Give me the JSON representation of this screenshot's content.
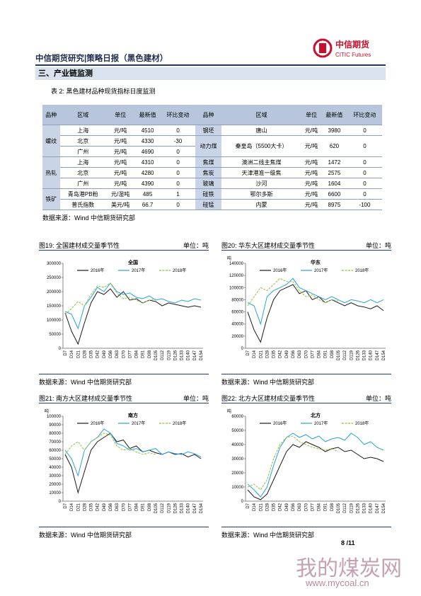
{
  "header": {
    "title": "中信期货研究|策略日报（黑色建材）",
    "logo_cn": "中信期货",
    "logo_en": "CITIC Futures"
  },
  "section": "三、产业链监测",
  "table": {
    "caption": "表 2: 黑色建材品种现货指标日度监测",
    "columns": [
      "品种",
      "区域",
      "单位",
      "最新值",
      "环比变动",
      "品种",
      "区域",
      "单位",
      "最新值",
      "环比变动"
    ],
    "left": [
      {
        "name": "螺纹",
        "rows": [
          [
            "上海",
            "元/吨",
            4510,
            0
          ],
          [
            "北京",
            "元/吨",
            4330,
            -30
          ],
          [
            "广州",
            "元/吨",
            4690,
            0
          ]
        ]
      },
      {
        "name": "热轧",
        "rows": [
          [
            "上海",
            "元/吨",
            4310,
            0
          ],
          [
            "北京",
            "元/吨",
            4280,
            0
          ],
          [
            "广州",
            "元/吨",
            4390,
            0
          ]
        ]
      },
      {
        "name": "铁矿",
        "rows": [
          [
            "青岛港PB粉",
            "元/湿吨",
            485,
            1
          ],
          [
            "普氏指数",
            "美元/吨",
            66.7,
            0
          ]
        ]
      }
    ],
    "right": [
      {
        "name": "钢坯",
        "rows": [
          [
            "唐山",
            "元/吨",
            3980,
            0
          ]
        ]
      },
      {
        "name": "动力煤",
        "rows": [
          [
            "秦皇岛（5500大卡）",
            "元/吨",
            620,
            0
          ]
        ]
      },
      {
        "name": "焦煤",
        "rows": [
          [
            "澳洲二线主焦煤",
            "元/吨",
            1472,
            0
          ]
        ]
      },
      {
        "name": "焦炭",
        "rows": [
          [
            "天津港准一级焦",
            "元/吨",
            2575,
            0
          ]
        ]
      },
      {
        "name": "玻璃",
        "rows": [
          [
            "沙河",
            "元/吨",
            1604,
            0
          ]
        ]
      },
      {
        "name": "硅铁",
        "rows": [
          [
            "鄂尔多斯",
            "元/吨",
            6600,
            0
          ]
        ]
      },
      {
        "name": "硅锰",
        "rows": [
          [
            "内蒙",
            "元/吨",
            8975,
            -100
          ]
        ]
      }
    ],
    "source": "数据来源：Wind 中信期货研究部"
  },
  "charts": [
    {
      "type": "line",
      "figure": "图19: 全国建材成交量季节性",
      "unit": "单位：吨",
      "title": "全国",
      "source": "数据来源：Wind 中信期货研究部",
      "categories": [
        "D7",
        "D14",
        "D21",
        "D28",
        "D35",
        "D42",
        "D49",
        "D56",
        "D63",
        "D70",
        "D77",
        "D84",
        "D91",
        "D98",
        "D105",
        "D112",
        "D119",
        "D126",
        "D133",
        "D140",
        "D147",
        "D154"
      ],
      "ylim": [
        0,
        300000
      ],
      "yticks": [
        0,
        50000,
        100000,
        150000,
        200000,
        250000,
        300000
      ],
      "series": [
        {
          "name": "2016年",
          "color": "#1a1a1a",
          "values": [
            125000,
            60000,
            15000,
            90000,
            160000,
            200000,
            190000,
            210000,
            180000,
            200000,
            170000,
            175000,
            160000,
            170000,
            165000,
            150000,
            160000,
            155000,
            150000,
            145000,
            150000,
            145000
          ]
        },
        {
          "name": "2017年",
          "color": "#29a3d9",
          "values": [
            130000,
            120000,
            70000,
            150000,
            180000,
            215000,
            200000,
            230000,
            200000,
            190000,
            195000,
            180000,
            175000,
            185000,
            170000,
            175000,
            165000,
            160000,
            170000,
            165000,
            175000,
            170000
          ]
        },
        {
          "name": "2018年",
          "color": "#8dc63f",
          "values": [
            120000,
            140000,
            165000,
            150000,
            190000,
            220000,
            215000,
            230000,
            195000,
            175000,
            180000,
            170000,
            160000,
            170000,
            175000,
            null,
            null,
            null,
            null,
            null,
            null,
            null
          ]
        }
      ]
    },
    {
      "type": "line",
      "figure": "图20: 华东大区建材成交量季节性",
      "unit": "单位：吨",
      "title": "华东",
      "ylabel": "吨",
      "source": "数据来源：Wind 中信期货研究部",
      "categories": [
        "D7",
        "D14",
        "D21",
        "D28",
        "D35",
        "D42",
        "D49",
        "D56",
        "D63",
        "D70",
        "D77",
        "D84",
        "D91",
        "D98",
        "D105",
        "D112",
        "D119",
        "D126",
        "D133",
        "D140",
        "D147",
        "D154"
      ],
      "ylim": [
        0,
        140000
      ],
      "yticks": [
        0,
        20000,
        40000,
        60000,
        80000,
        100000,
        120000,
        140000
      ],
      "series": [
        {
          "name": "2016年",
          "color": "#1a1a1a",
          "values": [
            60000,
            30000,
            10000,
            50000,
            80000,
            95000,
            100000,
            105000,
            90000,
            95000,
            80000,
            85000,
            75000,
            80000,
            75000,
            70000,
            75000,
            70000,
            68000,
            65000,
            70000,
            62000
          ]
        },
        {
          "name": "2017年",
          "color": "#29a3d9",
          "values": [
            75000,
            70000,
            40000,
            85000,
            95000,
            100000,
            105000,
            115000,
            100000,
            95000,
            90000,
            85000,
            80000,
            85000,
            80000,
            75000,
            80000,
            78000,
            75000,
            80000,
            75000,
            80000
          ]
        },
        {
          "name": "2018年",
          "color": "#8dc63f",
          "values": [
            70000,
            85000,
            100000,
            95000,
            105000,
            115000,
            110000,
            110000,
            95000,
            85000,
            88000,
            80000,
            75000,
            80000,
            78000,
            null,
            null,
            null,
            null,
            null,
            null,
            null
          ]
        }
      ]
    },
    {
      "type": "line",
      "figure": "图21: 南方大区建材成交量季节性",
      "unit": "单位：吨",
      "title": "南方",
      "ylabel": "吨",
      "source": "数据来源：Wind 中信期货研究部",
      "categories": [
        "D7",
        "D14",
        "D21",
        "D28",
        "D35",
        "D42",
        "D49",
        "D56",
        "D63",
        "D70",
        "D77",
        "D84",
        "D91",
        "D98",
        "D105",
        "D112",
        "D119",
        "D126",
        "D133",
        "D140",
        "D147",
        "D154"
      ],
      "ylim": [
        0,
        100000
      ],
      "yticks": [
        0,
        10000,
        20000,
        30000,
        40000,
        50000,
        60000,
        70000,
        80000,
        90000,
        100000
      ],
      "series": [
        {
          "name": "2016年",
          "color": "#1a1a1a",
          "values": [
            55000,
            40000,
            10000,
            35000,
            60000,
            70000,
            75000,
            80000,
            70000,
            72000,
            62000,
            65000,
            58000,
            60000,
            57000,
            55000,
            58000,
            55000,
            56000,
            52000,
            55000,
            50000
          ]
        },
        {
          "name": "2017年",
          "color": "#29a3d9",
          "values": [
            60000,
            50000,
            30000,
            60000,
            70000,
            75000,
            85000,
            80000,
            68000,
            65000,
            60000,
            62000,
            58000,
            60000,
            62000,
            55000,
            58000,
            56000,
            55000,
            58000,
            56000,
            52000
          ]
        },
        {
          "name": "2018年",
          "color": "#8dc63f",
          "values": [
            55000,
            65000,
            70000,
            60000,
            70000,
            75000,
            80000,
            78000,
            65000,
            60000,
            62000,
            58000,
            55000,
            57000,
            55000,
            null,
            null,
            null,
            null,
            null,
            null,
            null
          ]
        }
      ]
    },
    {
      "type": "line",
      "figure": "图22: 北方大区建材成交量季节性",
      "unit": "单位：吨",
      "title": "北方",
      "ylabel": "吨",
      "source": "数据来源：Wind 中信期货研究部",
      "categories": [
        "D7",
        "D14",
        "D21",
        "D28",
        "D35",
        "D42",
        "D49",
        "D56",
        "D63",
        "D70",
        "D77",
        "D84",
        "D91",
        "D98",
        "D105",
        "D112",
        "D119",
        "D126",
        "D133",
        "D140",
        "D147",
        "D154"
      ],
      "ylim": [
        0,
        60000
      ],
      "yticks": [
        0,
        10000,
        20000,
        30000,
        40000,
        50000,
        60000
      ],
      "series": [
        {
          "name": "2016年",
          "color": "#1a1a1a",
          "values": [
            8000,
            3000,
            1000,
            5000,
            15000,
            25000,
            35000,
            40000,
            38000,
            42000,
            40000,
            38000,
            35000,
            37000,
            38000,
            35000,
            36000,
            33000,
            30000,
            31000,
            30000,
            28000
          ]
        },
        {
          "name": "2017年",
          "color": "#29a3d9",
          "values": [
            12000,
            8000,
            3000,
            10000,
            25000,
            38000,
            45000,
            48000,
            45000,
            47000,
            44000,
            46000,
            42000,
            44000,
            45000,
            43000,
            48000,
            45000,
            40000,
            42000,
            38000,
            36000
          ]
        },
        {
          "name": "2018年",
          "color": "#8dc63f",
          "values": [
            10000,
            12000,
            8000,
            15000,
            30000,
            40000,
            45000,
            46000,
            42000,
            40000,
            38000,
            37000,
            36000,
            37000,
            35000,
            null,
            null,
            null,
            null,
            null,
            null,
            null
          ]
        }
      ]
    }
  ],
  "footer": {
    "page": "8 /11"
  },
  "watermark": {
    "cn": "我的煤炭网",
    "url": "www.mycoal.cn"
  }
}
